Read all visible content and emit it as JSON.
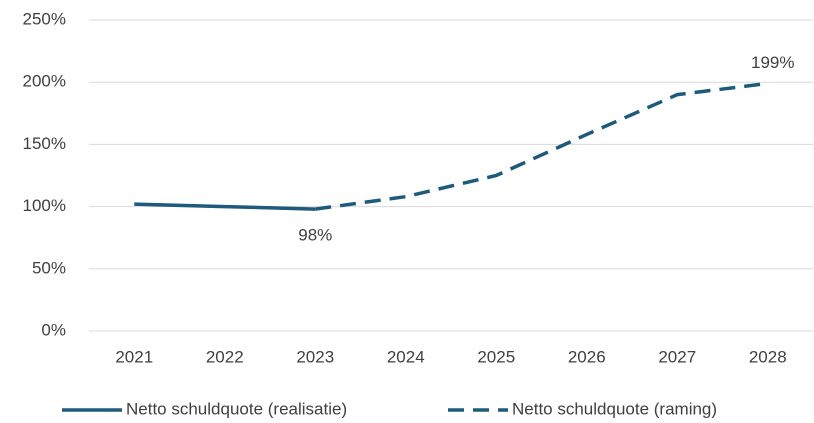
{
  "chart_data": {
    "type": "line",
    "categories": [
      "2021",
      "2022",
      "2023",
      "2024",
      "2025",
      "2026",
      "2027",
      "2028"
    ],
    "series": [
      {
        "name": "Netto schuldquote (realisatie)",
        "color": "#1d5a7b",
        "line_style": "solid",
        "values": [
          102,
          100,
          98,
          null,
          null,
          null,
          null,
          null
        ],
        "value_labels": [
          null,
          null,
          "98%",
          null,
          null,
          null,
          null,
          null
        ]
      },
      {
        "name": "Netto schuldquote (raming)",
        "color": "#1d5a7b",
        "line_style": "dashed",
        "values": [
          null,
          null,
          98,
          108,
          125,
          158,
          190,
          199
        ],
        "value_labels": [
          null,
          null,
          null,
          null,
          null,
          null,
          null,
          "199%"
        ]
      }
    ],
    "ylim": [
      0,
      250
    ],
    "yticks": [
      {
        "value": 0,
        "label": "0%"
      },
      {
        "value": 50,
        "label": "50%"
      },
      {
        "value": 100,
        "label": "100%"
      },
      {
        "value": 150,
        "label": "150%"
      },
      {
        "value": 200,
        "label": "200%"
      },
      {
        "value": 250,
        "label": "250%"
      }
    ],
    "grid": true,
    "legend": "bottom"
  }
}
